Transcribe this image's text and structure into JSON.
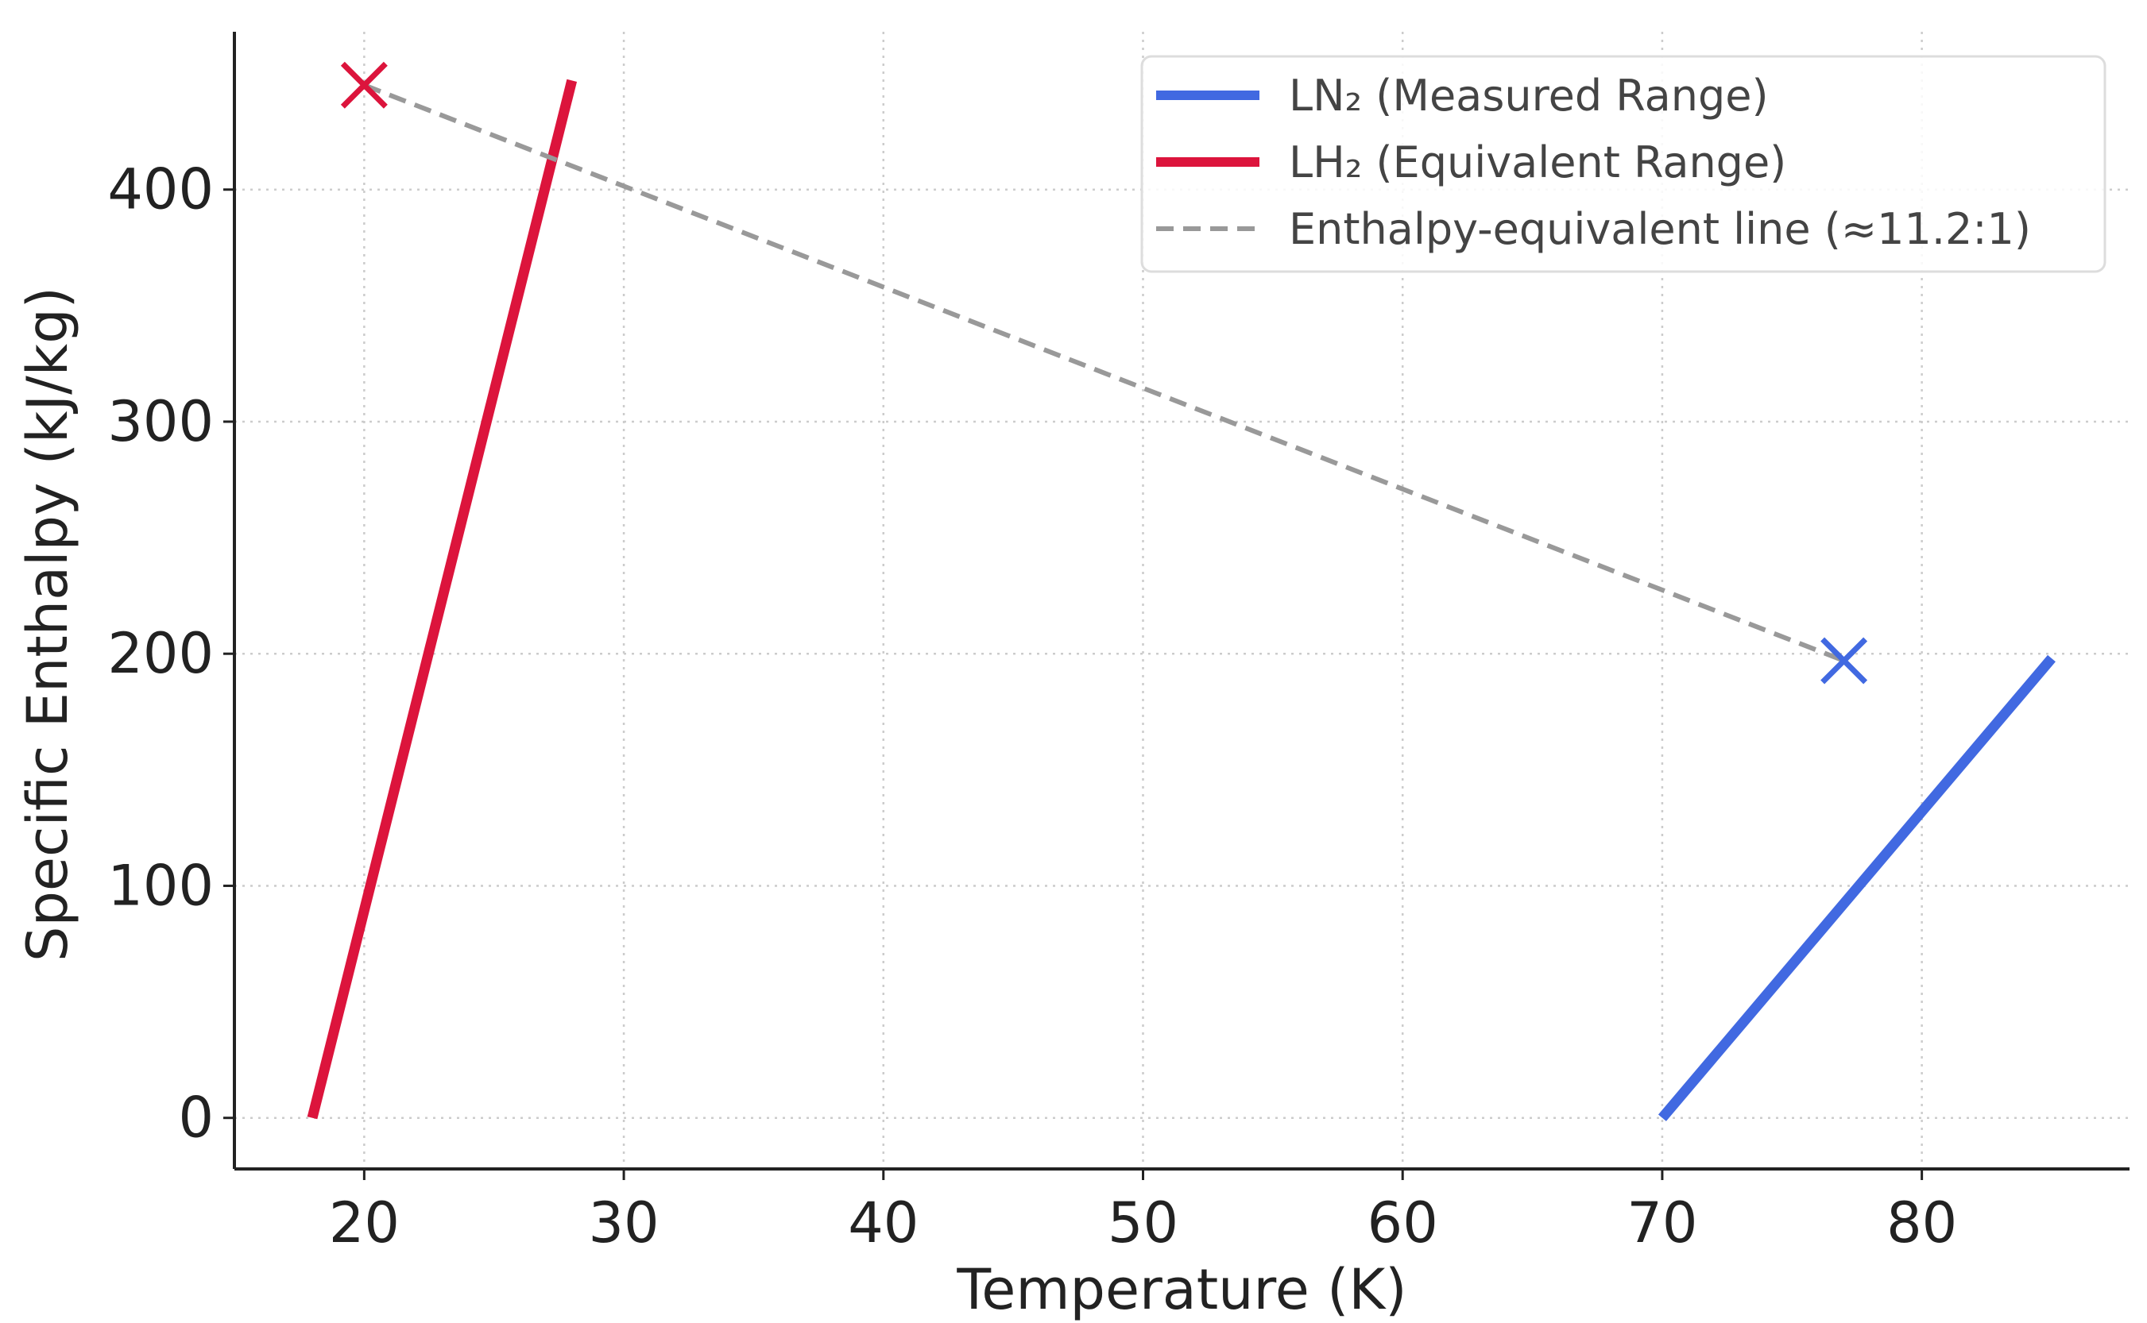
{
  "chart_data": {
    "type": "line",
    "title": "",
    "xlabel": "Temperature (K)",
    "ylabel": "Specific Enthalpy (kJ/kg)",
    "xlim": [
      15,
      88
    ],
    "ylim": [
      -22,
      468
    ],
    "xticks": [
      20,
      30,
      40,
      50,
      60,
      70,
      80
    ],
    "yticks": [
      0,
      100,
      200,
      300,
      400
    ],
    "grid": true,
    "legend_position": "top-right",
    "series": [
      {
        "name": "LN₂ (Measured Range)",
        "color": "#4169e1",
        "style": "solid",
        "x": [
          70,
          85
        ],
        "y": [
          0,
          198
        ]
      },
      {
        "name": "LH₂ (Equivalent Range)",
        "color": "#dc143c",
        "style": "solid",
        "x": [
          18,
          28
        ],
        "y": [
          0,
          447
        ]
      },
      {
        "name": "Enthalpy-equivalent line (≈11.2:1)",
        "color": "#999999",
        "style": "dashed",
        "x": [
          20,
          77
        ],
        "y": [
          445,
          197
        ]
      }
    ],
    "markers": [
      {
        "name": "LH₂ point",
        "symbol": "x",
        "color": "#dc143c",
        "x": 20,
        "y": 445
      },
      {
        "name": "LN₂ point",
        "symbol": "x",
        "color": "#4169e1",
        "x": 77,
        "y": 197
      }
    ]
  }
}
